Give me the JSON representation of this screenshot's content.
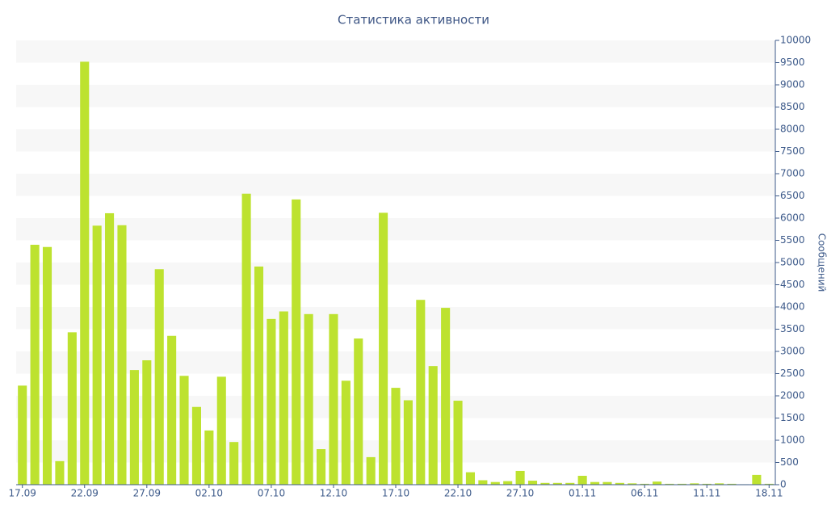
{
  "chart_data": {
    "type": "bar",
    "title": "Статистика активности",
    "y_label": "Сообщений",
    "categories": [
      "17.09",
      null,
      null,
      null,
      null,
      "22.09",
      null,
      null,
      null,
      null,
      "27.09",
      null,
      null,
      null,
      null,
      "02.10",
      null,
      null,
      null,
      null,
      "07.10",
      null,
      null,
      null,
      null,
      "12.10",
      null,
      null,
      null,
      null,
      "17.10",
      null,
      null,
      null,
      null,
      "22.10",
      null,
      null,
      null,
      null,
      "27.10",
      null,
      null,
      null,
      null,
      "01.11",
      null,
      null,
      null,
      null,
      "06.11",
      null,
      null,
      null,
      null,
      "11.11",
      null,
      null,
      null,
      null,
      "18.11"
    ],
    "values": [
      2230,
      5400,
      5350,
      530,
      3430,
      9520,
      5830,
      6110,
      5840,
      2580,
      2800,
      4850,
      3350,
      2450,
      1750,
      1220,
      2430,
      960,
      6550,
      4910,
      3730,
      3900,
      6420,
      3840,
      800,
      3840,
      2340,
      3290,
      620,
      6120,
      2180,
      1900,
      4160,
      2670,
      3980,
      1890,
      280,
      100,
      60,
      80,
      310,
      90,
      40,
      40,
      40,
      200,
      60,
      60,
      40,
      30,
      20,
      70,
      20,
      20,
      30,
      20,
      30,
      20,
      10,
      220,
      20
    ],
    "color": "#bde22f",
    "ylim": [
      0,
      10000
    ],
    "yticks": [
      0,
      500,
      1000,
      1500,
      2000,
      2500,
      3000,
      3500,
      4000,
      4500,
      5000,
      5500,
      6000,
      6500,
      7000,
      7500,
      8000,
      8500,
      9000,
      9500,
      10000
    ],
    "grid": true
  }
}
